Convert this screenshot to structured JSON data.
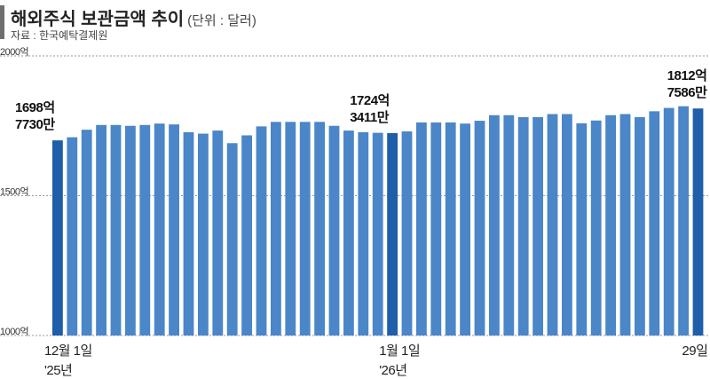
{
  "header": {
    "title": "해외주식 보관금액 추이",
    "unit": "(단위 : 달러)",
    "source": "자료 : 한국예탁결제원"
  },
  "colors": {
    "bar": "#4a86c8",
    "bar_highlight": "#1f5ea8",
    "grid": "#9a9a9a",
    "title_accent": "#6f6f6f"
  },
  "chart_data": {
    "type": "bar",
    "title": "해외주식 보관금액 추이",
    "unit": "달러",
    "ylim": [
      1000,
      2000
    ],
    "y_ticks": [
      {
        "value": 2000,
        "label": "2000억"
      },
      {
        "value": 1500,
        "label": "1500억"
      },
      {
        "value": 1000,
        "label": "1000억"
      }
    ],
    "grid": "dotted horizontal at ticks",
    "x_tick_labels": [
      {
        "index": 0,
        "lines": [
          "12월 1일",
          "'25년"
        ]
      },
      {
        "index": 23,
        "lines": [
          "1월 1일",
          "'26년"
        ]
      },
      {
        "index": 44,
        "lines": [
          "29일"
        ]
      }
    ],
    "values": [
      1698,
      1709,
      1736,
      1753,
      1753,
      1750,
      1753,
      1758,
      1755,
      1727,
      1722,
      1733,
      1688,
      1716,
      1748,
      1764,
      1764,
      1764,
      1764,
      1750,
      1733,
      1727,
      1725,
      1724,
      1730,
      1762,
      1762,
      1762,
      1758,
      1768,
      1788,
      1788,
      1781,
      1781,
      1792,
      1792,
      1759,
      1769,
      1788,
      1792,
      1781,
      1802,
      1814,
      1820,
      1812
    ],
    "highlight_indices": [
      0,
      23,
      44
    ],
    "data_labels": [
      {
        "index": 0,
        "lines": [
          "1698억",
          "7730만"
        ]
      },
      {
        "index": 23,
        "lines": [
          "1724억",
          "3411만"
        ]
      },
      {
        "index": 44,
        "lines": [
          "1812억",
          "7586만"
        ]
      }
    ]
  }
}
